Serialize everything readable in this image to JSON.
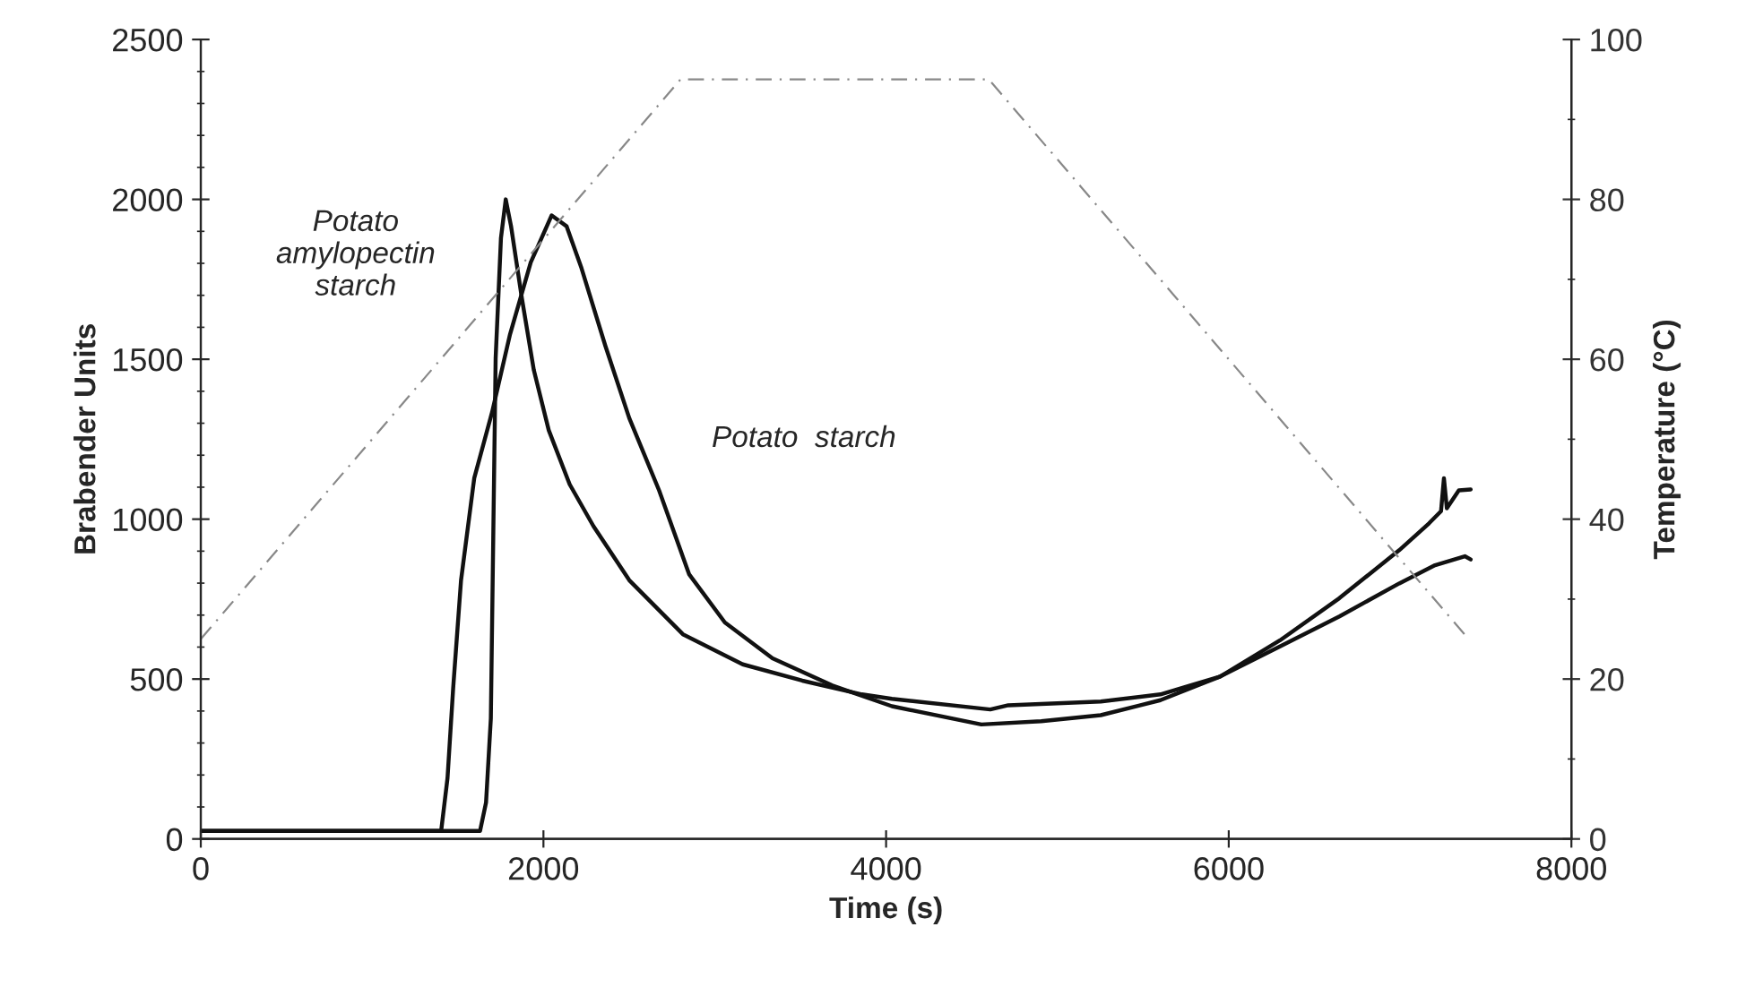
{
  "chart_data": {
    "type": "line",
    "xlabel": "Time (s)",
    "ylabel": "Brabender Units",
    "y2label": "Temperature (°C)",
    "xlim": [
      0,
      8000
    ],
    "xticks": [
      0,
      2000,
      4000,
      6000,
      8000
    ],
    "ylim": [
      0,
      2500
    ],
    "yticks": [
      0,
      500,
      1000,
      1500,
      2000,
      2500
    ],
    "y2lim": [
      0,
      100
    ],
    "y2ticks": [
      0,
      20,
      40,
      60,
      80,
      100
    ],
    "grid": false,
    "legend": false,
    "marker": "none",
    "series": [
      {
        "color": "#111111",
        "line_style": "solid",
        "x": [
          0,
          1630,
          1665,
          1693,
          1707,
          1721,
          1752,
          1780,
          1811,
          1874,
          1944,
          2031,
          2153,
          2292,
          2501,
          2814,
          3163,
          3511,
          3859,
          4034,
          4608,
          4713,
          5253,
          5601,
          5950,
          6299,
          6646,
          6995,
          7204,
          7378,
          7412
        ],
        "values": [
          25,
          25,
          114,
          377,
          940,
          1503,
          1879,
          2000,
          1916,
          1691,
          1466,
          1278,
          1109,
          978,
          809,
          640,
          546,
          495,
          452,
          438,
          405,
          418,
          430,
          452,
          508,
          602,
          696,
          799,
          856,
          884,
          874
        ]
      },
      {
        "color": "#111111",
        "line_style": "solid",
        "x": [
          0,
          1403,
          1440,
          1473,
          1519,
          1596,
          1700,
          1805,
          1926,
          2048,
          2135,
          2222,
          2362,
          2501,
          2675,
          2850,
          3059,
          3337,
          3686,
          4034,
          4556,
          4905,
          5253,
          5601,
          5950,
          6299,
          6646,
          6995,
          7169,
          7239,
          7256,
          7273,
          7343,
          7412
        ],
        "values": [
          25,
          25,
          190,
          471,
          809,
          1128,
          1334,
          1578,
          1803,
          1950,
          1916,
          1785,
          1541,
          1316,
          1090,
          828,
          677,
          565,
          480,
          415,
          358,
          368,
          387,
          434,
          508,
          621,
          753,
          903,
          987,
          1025,
          1128,
          1034,
          1090,
          1093
        ]
      },
      {
        "color": "#888888",
        "line_style": "dashed",
        "axis": "y2",
        "x": [
          0,
          2800,
          4600,
          7400
        ],
        "values": [
          25,
          95,
          95,
          25
        ]
      }
    ],
    "annotations": [
      "Potato\namylopectin\nstarch",
      "Potato  starch"
    ]
  }
}
